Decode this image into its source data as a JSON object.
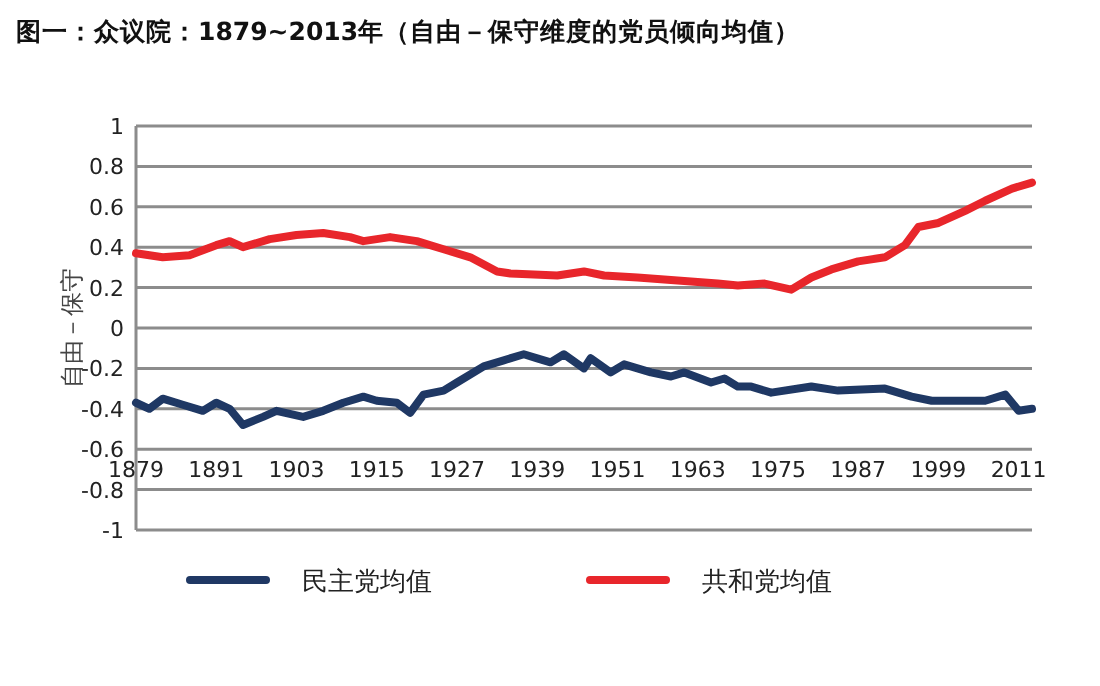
{
  "chart_data": {
    "type": "line",
    "title": "图一：众议院：1879~2013年（自由－保守维度的党员倾向均值）",
    "ylabel": "自由－保守",
    "xlim": [
      1879,
      2013
    ],
    "xticks": [
      1879,
      1891,
      1903,
      1915,
      1927,
      1939,
      1951,
      1963,
      1975,
      1987,
      1999,
      2011
    ],
    "ylim": [
      -1,
      1
    ],
    "yticks": [
      -1,
      {
        "value": -0.8,
        "label": "-0.8"
      },
      {
        "value": -0.6,
        "label": "-0.6"
      },
      {
        "value": -0.4,
        "label": "-0.4"
      },
      {
        "value": -0.2,
        "label": "-0.2"
      },
      0,
      0.2,
      0.4,
      0.6,
      0.8,
      1
    ],
    "grid": "y",
    "legend": "bottom",
    "marker": "none",
    "line_style": "solid",
    "series": [
      {
        "name": "民主党均值",
        "color": "#1f3864",
        "x": [
          1879,
          1881,
          1883,
          1886,
          1889,
          1891,
          1893,
          1895,
          1898,
          1900,
          1904,
          1907,
          1910,
          1913,
          1915,
          1918,
          1920,
          1922,
          1925,
          1927,
          1931,
          1934,
          1937,
          1939,
          1941,
          1943,
          1946,
          1947,
          1950,
          1952,
          1956,
          1959,
          1961,
          1965,
          1967,
          1969,
          1971,
          1974,
          1980,
          1984,
          1991,
          1995,
          1998,
          2002,
          2006,
          2009,
          2011,
          2013
        ],
        "values": [
          -0.37,
          -0.4,
          -0.35,
          -0.38,
          -0.41,
          -0.37,
          -0.4,
          -0.48,
          -0.44,
          -0.41,
          -0.44,
          -0.41,
          -0.37,
          -0.34,
          -0.36,
          -0.37,
          -0.42,
          -0.33,
          -0.31,
          -0.27,
          -0.19,
          -0.16,
          -0.13,
          -0.15,
          -0.17,
          -0.13,
          -0.2,
          -0.15,
          -0.22,
          -0.18,
          -0.22,
          -0.24,
          -0.22,
          -0.27,
          -0.25,
          -0.29,
          -0.29,
          -0.32,
          -0.29,
          -0.31,
          -0.3,
          -0.34,
          -0.36,
          -0.36,
          -0.36,
          -0.33,
          -0.41,
          -0.4
        ]
      },
      {
        "name": "共和党均值",
        "color": "#e8262b",
        "x": [
          1879,
          1883,
          1887,
          1891,
          1893,
          1895,
          1899,
          1903,
          1907,
          1911,
          1913,
          1917,
          1921,
          1925,
          1929,
          1933,
          1935,
          1942,
          1946,
          1949,
          1954,
          1958,
          1962,
          1966,
          1969,
          1973,
          1977,
          1980,
          1983,
          1987,
          1991,
          1994,
          1996,
          1999,
          2003,
          2006,
          2010,
          2013
        ],
        "values": [
          0.37,
          0.35,
          0.36,
          0.41,
          0.43,
          0.4,
          0.44,
          0.46,
          0.47,
          0.45,
          0.43,
          0.45,
          0.43,
          0.39,
          0.35,
          0.28,
          0.27,
          0.26,
          0.28,
          0.26,
          0.25,
          0.24,
          0.23,
          0.22,
          0.21,
          0.22,
          0.19,
          0.25,
          0.29,
          0.33,
          0.35,
          0.41,
          0.5,
          0.52,
          0.58,
          0.63,
          0.69,
          0.72
        ]
      }
    ]
  }
}
